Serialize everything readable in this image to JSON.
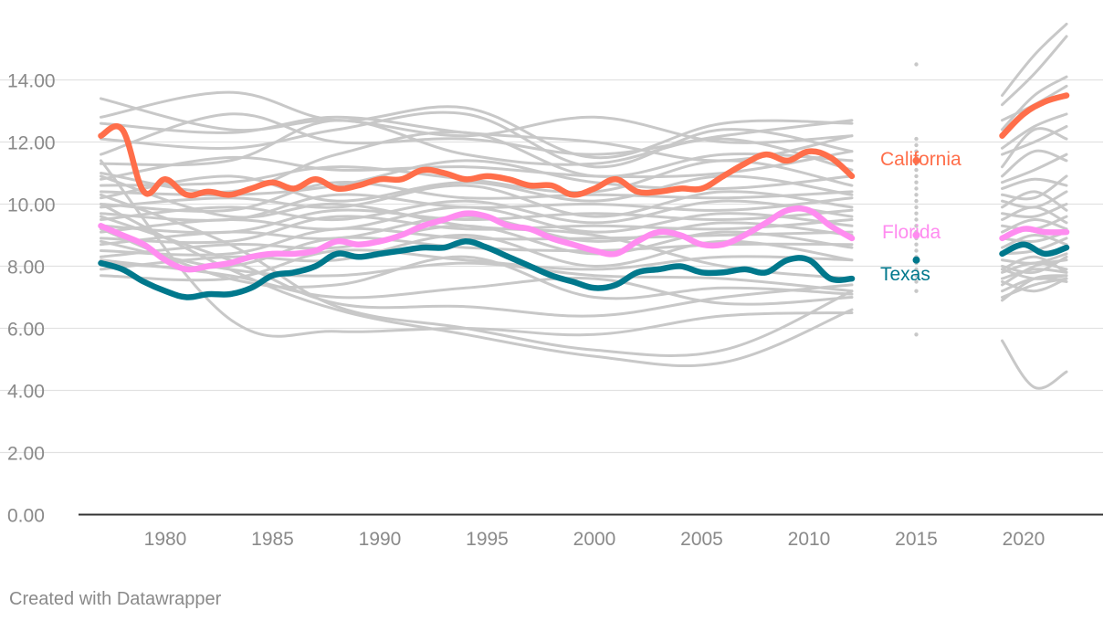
{
  "credit": "Created with Datawrapper",
  "chart_data": {
    "type": "line",
    "title": "",
    "xlabel": "",
    "ylabel": "",
    "xlim": [
      1976.5,
      2023
    ],
    "ylim": [
      0,
      14
    ],
    "y_ticks": [
      0,
      2,
      4,
      6,
      8,
      10,
      12,
      14
    ],
    "y_tick_labels": [
      "0.00",
      "2.00",
      "4.00",
      "6.00",
      "8.00",
      "10.00",
      "12.00",
      "14.00"
    ],
    "x_ticks": [
      1980,
      1985,
      1990,
      1995,
      2000,
      2005,
      2010,
      2015,
      2020
    ],
    "x_tick_labels": [
      "1980",
      "1985",
      "1990",
      "1995",
      "2000",
      "2005",
      "2010",
      "2015",
      "2020"
    ],
    "grid": true,
    "colors": {
      "background_series": "#c8c8c8",
      "california": "#ff6e4a",
      "florida": "#ff8cf0",
      "texas": "#00788c",
      "grid": "#e1e1e1",
      "axis": "#333333",
      "tick_text": "#8a8a8a"
    },
    "highlighted_series": [
      {
        "name": "California",
        "color": "#ff6e4a",
        "segments": [
          {
            "x": [
              1977,
              1978,
              1979,
              1980,
              1981,
              1982,
              1983,
              1984,
              1985,
              1986,
              1987,
              1988,
              1989,
              1990,
              1991,
              1992,
              1993,
              1994,
              1995,
              1996,
              1997,
              1998,
              1999,
              2000,
              2001,
              2002,
              2003,
              2004,
              2005,
              2006,
              2007,
              2008,
              2009,
              2010,
              2011,
              2012
            ],
            "y": [
              12.2,
              12.4,
              10.4,
              10.8,
              10.3,
              10.4,
              10.3,
              10.5,
              10.7,
              10.5,
              10.8,
              10.5,
              10.6,
              10.8,
              10.8,
              11.1,
              11.0,
              10.8,
              10.9,
              10.8,
              10.6,
              10.6,
              10.3,
              10.5,
              10.8,
              10.4,
              10.4,
              10.5,
              10.5,
              10.9,
              11.3,
              11.6,
              11.4,
              11.7,
              11.5,
              10.9
            ]
          },
          {
            "x": [
              2019,
              2020,
              2021,
              2022
            ],
            "y": [
              12.2,
              12.9,
              13.3,
              13.5
            ]
          }
        ],
        "point_2015": 11.4
      },
      {
        "name": "Florida",
        "color": "#ff8cf0",
        "segments": [
          {
            "x": [
              1977,
              1978,
              1979,
              1980,
              1981,
              1982,
              1983,
              1984,
              1985,
              1986,
              1987,
              1988,
              1989,
              1990,
              1991,
              1992,
              1993,
              1994,
              1995,
              1996,
              1997,
              1998,
              1999,
              2000,
              2001,
              2002,
              2003,
              2004,
              2005,
              2006,
              2007,
              2008,
              2009,
              2010,
              2011,
              2012
            ],
            "y": [
              9.3,
              9.0,
              8.7,
              8.2,
              7.9,
              8.0,
              8.1,
              8.3,
              8.4,
              8.4,
              8.5,
              8.8,
              8.7,
              8.8,
              9.0,
              9.3,
              9.5,
              9.7,
              9.6,
              9.3,
              9.2,
              8.9,
              8.7,
              8.5,
              8.4,
              8.8,
              9.1,
              9.0,
              8.7,
              8.7,
              9.0,
              9.4,
              9.8,
              9.8,
              9.3,
              8.9
            ]
          },
          {
            "x": [
              2019,
              2020,
              2021,
              2022
            ],
            "y": [
              8.9,
              9.2,
              9.1,
              9.1
            ]
          }
        ],
        "point_2015": 9.0
      },
      {
        "name": "Texas",
        "color": "#00788c",
        "segments": [
          {
            "x": [
              1977,
              1978,
              1979,
              1980,
              1981,
              1982,
              1983,
              1984,
              1985,
              1986,
              1987,
              1988,
              1989,
              1990,
              1991,
              1992,
              1993,
              1994,
              1995,
              1996,
              1997,
              1998,
              1999,
              2000,
              2001,
              2002,
              2003,
              2004,
              2005,
              2006,
              2007,
              2008,
              2009,
              2010,
              2011,
              2012
            ],
            "y": [
              8.1,
              7.9,
              7.5,
              7.2,
              7.0,
              7.1,
              7.1,
              7.3,
              7.7,
              7.8,
              8.0,
              8.4,
              8.3,
              8.4,
              8.5,
              8.6,
              8.6,
              8.8,
              8.6,
              8.3,
              8.0,
              7.7,
              7.5,
              7.3,
              7.4,
              7.8,
              7.9,
              8.0,
              7.8,
              7.8,
              7.9,
              7.8,
              8.2,
              8.2,
              7.6,
              7.6
            ]
          },
          {
            "x": [
              2019,
              2020,
              2021,
              2022
            ],
            "y": [
              8.4,
              8.7,
              8.4,
              8.6
            ]
          }
        ],
        "point_2015": 8.2
      }
    ],
    "background_series": [
      {
        "a": [
          13.4,
          12.4,
          12.7,
          12.2,
          12.8,
          12.0,
          12.2
        ],
        "b": [
          13.5,
          14.8,
          15.8
        ]
      },
      {
        "a": [
          12.8,
          13.6,
          12.7,
          13.1,
          11.5,
          12.6,
          12.6
        ],
        "b": [
          13.2,
          14.2,
          15.4
        ]
      },
      {
        "a": [
          12.6,
          12.3,
          12.8,
          12.3,
          12.0,
          11.4,
          12.2
        ],
        "b": [
          12.4,
          13.5,
          14.1
        ]
      },
      {
        "a": [
          12.1,
          11.8,
          12.4,
          12.9,
          11.2,
          12.4,
          11.7
        ],
        "b": [
          12.7,
          13.2,
          13.8
        ]
      },
      {
        "a": [
          11.6,
          12.9,
          12.0,
          12.1,
          11.6,
          12.2,
          12.7
        ],
        "b": [
          11.8,
          12.5,
          12.9
        ]
      },
      {
        "a": [
          11.3,
          11.4,
          12.7,
          11.6,
          11.3,
          12.1,
          11.1
        ],
        "b": [
          11.6,
          12.0,
          12.5
        ]
      },
      {
        "a": [
          11.0,
          10.4,
          11.6,
          12.3,
          10.9,
          11.6,
          11.4
        ],
        "b": [
          11.2,
          12.4,
          12.1
        ]
      },
      {
        "a": [
          10.8,
          11.5,
          11.1,
          11.2,
          10.9,
          11.0,
          11.7
        ],
        "b": [
          10.9,
          11.7,
          11.4
        ]
      },
      {
        "a": [
          10.6,
          10.7,
          11.2,
          10.8,
          10.4,
          11.4,
          10.6
        ],
        "b": [
          10.7,
          11.1,
          11.6
        ]
      },
      {
        "a": [
          10.4,
          10.3,
          10.6,
          11.4,
          10.7,
          10.5,
          10.9
        ],
        "b": [
          10.5,
          10.8,
          10.6
        ]
      },
      {
        "a": [
          10.2,
          10.9,
          10.1,
          10.7,
          10.1,
          10.9,
          10.3
        ],
        "b": [
          10.3,
          10.2,
          10.9
        ]
      },
      {
        "a": [
          10.0,
          9.8,
          10.7,
          10.2,
          10.3,
          10.2,
          10.4
        ],
        "b": [
          10.1,
          9.9,
          10.4
        ]
      },
      {
        "a": [
          9.9,
          10.2,
          9.9,
          10.6,
          9.6,
          10.4,
          9.9
        ],
        "b": [
          9.9,
          10.4,
          9.8
        ]
      },
      {
        "a": [
          9.7,
          9.5,
          10.3,
          9.9,
          10.0,
          9.8,
          10.2
        ],
        "b": [
          9.7,
          9.6,
          10.0
        ]
      },
      {
        "a": [
          9.5,
          9.9,
          9.5,
          10.1,
          9.4,
          10.1,
          9.6
        ],
        "b": [
          9.5,
          9.9,
          9.4
        ]
      },
      {
        "a": [
          9.3,
          9.1,
          9.8,
          9.5,
          9.7,
          9.5,
          9.8
        ],
        "b": [
          9.3,
          9.2,
          9.6
        ]
      },
      {
        "a": [
          9.1,
          9.5,
          9.2,
          9.9,
          9.1,
          9.7,
          9.3
        ],
        "b": [
          9.1,
          9.5,
          9.2
        ]
      },
      {
        "a": [
          8.9,
          8.8,
          9.6,
          9.2,
          9.3,
          9.2,
          9.5
        ],
        "b": [
          8.9,
          8.8,
          9.1
        ]
      },
      {
        "a": [
          8.7,
          9.1,
          8.9,
          9.6,
          8.8,
          9.4,
          9.0
        ],
        "b": [
          8.6,
          9.0,
          8.7
        ]
      },
      {
        "a": [
          8.5,
          8.4,
          9.2,
          8.9,
          8.9,
          9.0,
          9.1
        ],
        "b": [
          8.4,
          8.5,
          8.9
        ]
      },
      {
        "a": [
          8.3,
          8.7,
          8.6,
          9.3,
          8.4,
          9.1,
          8.6
        ],
        "b": [
          8.2,
          8.1,
          8.4
        ]
      },
      {
        "a": [
          8.1,
          8.0,
          8.9,
          8.6,
          8.5,
          8.7,
          8.7
        ],
        "b": [
          8.0,
          7.8,
          8.3
        ]
      },
      {
        "a": [
          7.9,
          8.3,
          8.2,
          9.0,
          8.0,
          8.8,
          8.2
        ],
        "b": [
          7.9,
          8.3,
          7.8
        ]
      },
      {
        "a": [
          7.7,
          7.6,
          8.5,
          8.2,
          7.9,
          8.3,
          8.2
        ],
        "b": [
          7.5,
          7.2,
          7.6
        ]
      },
      {
        "a": [
          10.9,
          9.6,
          10.0,
          9.3,
          9.0,
          8.0,
          7.6
        ],
        "b": [
          7.9,
          7.6,
          7.7
        ]
      },
      {
        "a": [
          11.4,
          6.3,
          5.9,
          6.0,
          5.8,
          6.4,
          6.5
        ],
        "b": [
          6.9,
          7.6,
          7.7
        ]
      },
      {
        "a": [
          10.3,
          8.7,
          6.7,
          6.0,
          5.3,
          5.3,
          7.2
        ],
        "b": [
          7.2,
          7.6,
          7.5
        ]
      },
      {
        "a": [
          9.6,
          8.2,
          6.8,
          6.7,
          6.4,
          7.0,
          7.4
        ],
        "b": [
          7.0,
          7.4,
          7.6
        ]
      },
      {
        "a": [
          8.8,
          7.9,
          7.7,
          8.1,
          7.7,
          7.6,
          7.2
        ],
        "b": [
          7.4,
          8.0,
          8.2
        ]
      },
      {
        "a": [
          9.2,
          7.6,
          7.4,
          8.3,
          7.0,
          7.3,
          7.1
        ],
        "b": [
          7.6,
          7.9,
          7.8
        ]
      },
      {
        "a": [
          8.2,
          7.7,
          7.0,
          7.3,
          7.6,
          6.8,
          7.0
        ],
        "b": [
          7.8,
          8.1,
          7.9
        ]
      },
      {
        "a": [
          10.0,
          7.9,
          6.6,
          5.8,
          5.1,
          4.9,
          6.6
        ],
        "b": [
          5.6,
          4.1,
          4.6
        ]
      }
    ],
    "dots_2015": [
      14.5,
      12.1,
      11.9,
      11.7,
      11.5,
      11.3,
      11.1,
      10.9,
      10.7,
      10.5,
      10.3,
      10.1,
      9.9,
      9.7,
      9.5,
      9.3,
      9.1,
      8.9,
      8.7,
      8.5,
      8.3,
      8.1,
      7.9,
      7.7,
      7.5,
      7.2,
      5.8
    ]
  }
}
